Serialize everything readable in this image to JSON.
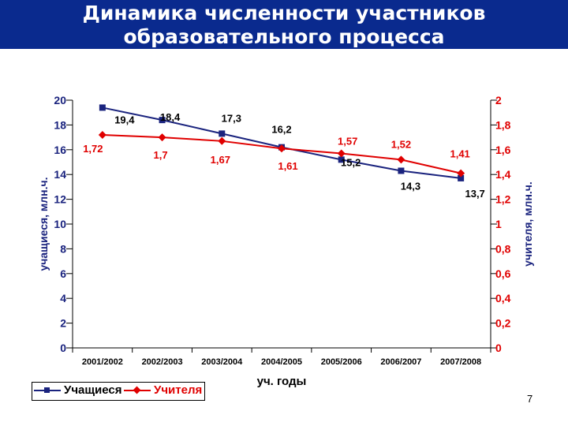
{
  "slide": {
    "title_line1": "Динамика численности участников",
    "title_line2": "образовательного процесса",
    "page_number": "7"
  },
  "colors": {
    "header_bg": "#0a2a8e",
    "students": "#1a237e",
    "teachers": "#e00000"
  },
  "chart_data": {
    "type": "line",
    "categories": [
      "2001/2002",
      "2002/2003",
      "2003/2004",
      "2004/2005",
      "2005/2006",
      "2006/2007",
      "2007/2008"
    ],
    "xlabel": "уч. годы",
    "series": [
      {
        "name": "Учащиеся",
        "axis": "left",
        "marker": "square",
        "values": [
          19.4,
          18.4,
          17.3,
          16.2,
          15.2,
          14.3,
          13.7
        ],
        "labels": [
          "19,4",
          "18,4",
          "17,3",
          "16,2",
          "15,2",
          "14,3",
          "13,7"
        ]
      },
      {
        "name": "Учителя",
        "axis": "right",
        "marker": "diamond",
        "values": [
          1.72,
          1.7,
          1.67,
          1.61,
          1.57,
          1.52,
          1.41
        ],
        "labels": [
          "1,72",
          "1,7",
          "1,67",
          "1,61",
          "1,57",
          "1,52",
          "1,41"
        ]
      }
    ],
    "y_left": {
      "label": "учащиеся, млн.ч.",
      "range": [
        0,
        20
      ],
      "ticks": [
        "0",
        "2",
        "4",
        "6",
        "8",
        "10",
        "12",
        "14",
        "16",
        "18",
        "20"
      ]
    },
    "y_right": {
      "label": "учителя, млн.ч.",
      "range": [
        0,
        2
      ],
      "ticks": [
        "0",
        "0,2",
        "0,4",
        "0,6",
        "0,8",
        "1",
        "1,2",
        "1,4",
        "1,6",
        "1,8",
        "2"
      ]
    },
    "grid": false,
    "legend_position": "bottom-left"
  }
}
